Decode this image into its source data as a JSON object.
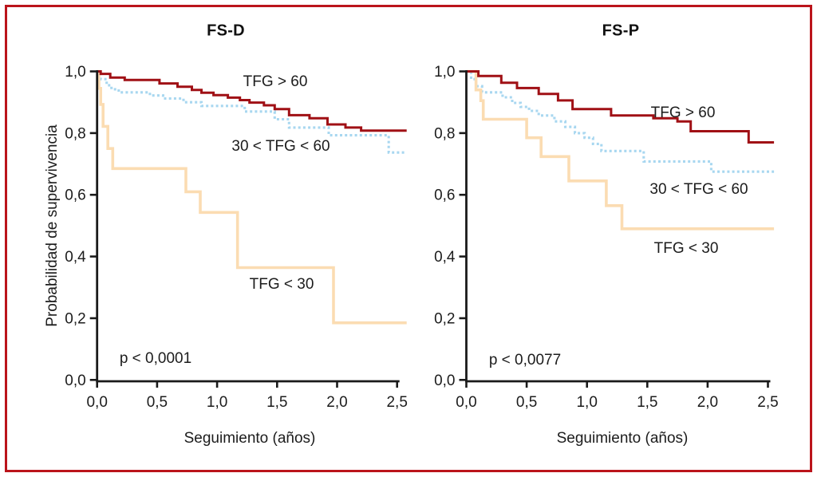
{
  "figure": {
    "border_color": "#bb141b",
    "background": "#ffffff"
  },
  "colors": {
    "tfg_gt60": "#a01015",
    "tfg_30_60": "#a8d7f0",
    "tfg_lt30": "#fbdcb2",
    "axis": "#1a1a1a"
  },
  "axes": {
    "x_label": "Seguimiento (años)",
    "y_label": "Probabilidad de supervivencia",
    "x_ticks": [
      "0,0",
      "0,5",
      "1,0",
      "1,5",
      "2,0",
      "2,5"
    ],
    "y_ticks": [
      "0,0",
      "0,2",
      "0,4",
      "0,6",
      "0,8",
      "1,0"
    ],
    "x_tick_values": [
      0,
      0.5,
      1.0,
      1.5,
      2.0,
      2.5
    ],
    "y_tick_values": [
      0,
      0.2,
      0.4,
      0.6,
      0.8,
      1.0
    ]
  },
  "chart_data": [
    {
      "type": "line",
      "subtype": "kaplan-meier-step",
      "title": "FS-D",
      "p_value": "p < 0,0001",
      "xlabel": "Seguimiento (años)",
      "ylabel": "Probabilidad de supervivencia",
      "xlim": [
        0,
        2.6
      ],
      "ylim": [
        0,
        1
      ],
      "x_max": 2.58,
      "series": [
        {
          "name": "TFG > 60",
          "color_key": "tfg_gt60",
          "style": "solid",
          "points": [
            [
              0,
              1.0
            ],
            [
              0.03,
              0.992
            ],
            [
              0.11,
              0.98
            ],
            [
              0.23,
              0.972
            ],
            [
              0.52,
              0.961
            ],
            [
              0.67,
              0.95
            ],
            [
              0.79,
              0.94
            ],
            [
              0.87,
              0.931
            ],
            [
              0.97,
              0.923
            ],
            [
              1.09,
              0.915
            ],
            [
              1.19,
              0.907
            ],
            [
              1.27,
              0.899
            ],
            [
              1.39,
              0.89
            ],
            [
              1.48,
              0.878
            ],
            [
              1.6,
              0.858
            ],
            [
              1.77,
              0.848
            ],
            [
              1.92,
              0.828
            ],
            [
              2.07,
              0.818
            ],
            [
              2.2,
              0.808
            ]
          ]
        },
        {
          "name": "30 < TFG < 60",
          "color_key": "tfg_30_60",
          "style": "dotted",
          "points": [
            [
              0,
              1.0
            ],
            [
              0.03,
              0.975
            ],
            [
              0.08,
              0.955
            ],
            [
              0.12,
              0.942
            ],
            [
              0.18,
              0.932
            ],
            [
              0.44,
              0.922
            ],
            [
              0.55,
              0.912
            ],
            [
              0.72,
              0.9
            ],
            [
              0.87,
              0.888
            ],
            [
              1.23,
              0.87
            ],
            [
              1.48,
              0.845
            ],
            [
              1.6,
              0.818
            ],
            [
              1.93,
              0.793
            ],
            [
              2.43,
              0.737
            ]
          ]
        },
        {
          "name": "TFG < 30",
          "color_key": "tfg_lt30",
          "style": "solid",
          "points": [
            [
              0,
              1.0
            ],
            [
              0.015,
              0.945
            ],
            [
              0.03,
              0.893
            ],
            [
              0.05,
              0.822
            ],
            [
              0.09,
              0.75
            ],
            [
              0.13,
              0.685
            ],
            [
              0.74,
              0.61
            ],
            [
              0.86,
              0.543
            ],
            [
              1.17,
              0.364
            ],
            [
              1.97,
              0.185
            ]
          ]
        }
      ]
    },
    {
      "type": "line",
      "subtype": "kaplan-meier-step",
      "title": "FS-P",
      "p_value": "p < 0,0077",
      "xlabel": "Seguimiento (años)",
      "ylabel": "Probabilidad de supervivencia",
      "xlim": [
        0,
        2.6
      ],
      "ylim": [
        0,
        1
      ],
      "x_max": 2.55,
      "series": [
        {
          "name": "TFG > 60",
          "color_key": "tfg_gt60",
          "style": "solid",
          "points": [
            [
              0,
              1.0
            ],
            [
              0.1,
              0.985
            ],
            [
              0.29,
              0.963
            ],
            [
              0.42,
              0.946
            ],
            [
              0.6,
              0.927
            ],
            [
              0.76,
              0.906
            ],
            [
              0.88,
              0.878
            ],
            [
              1.2,
              0.857
            ],
            [
              1.55,
              0.848
            ],
            [
              1.75,
              0.838
            ],
            [
              1.86,
              0.806
            ],
            [
              2.34,
              0.77
            ]
          ]
        },
        {
          "name": "30 < TFG < 60",
          "color_key": "tfg_30_60",
          "style": "dotted",
          "points": [
            [
              0,
              1.0
            ],
            [
              0.04,
              0.975
            ],
            [
              0.08,
              0.952
            ],
            [
              0.13,
              0.932
            ],
            [
              0.3,
              0.916
            ],
            [
              0.38,
              0.898
            ],
            [
              0.45,
              0.885
            ],
            [
              0.52,
              0.872
            ],
            [
              0.6,
              0.857
            ],
            [
              0.73,
              0.838
            ],
            [
              0.82,
              0.82
            ],
            [
              0.9,
              0.8
            ],
            [
              0.98,
              0.785
            ],
            [
              1.05,
              0.765
            ],
            [
              1.12,
              0.742
            ],
            [
              1.47,
              0.708
            ],
            [
              2.03,
              0.675
            ]
          ]
        },
        {
          "name": "TFG < 30",
          "color_key": "tfg_lt30",
          "style": "solid",
          "points": [
            [
              0,
              1.0
            ],
            [
              0.08,
              0.94
            ],
            [
              0.12,
              0.905
            ],
            [
              0.14,
              0.845
            ],
            [
              0.5,
              0.785
            ],
            [
              0.62,
              0.724
            ],
            [
              0.85,
              0.645
            ],
            [
              1.16,
              0.565
            ],
            [
              1.29,
              0.49
            ]
          ]
        }
      ]
    }
  ]
}
